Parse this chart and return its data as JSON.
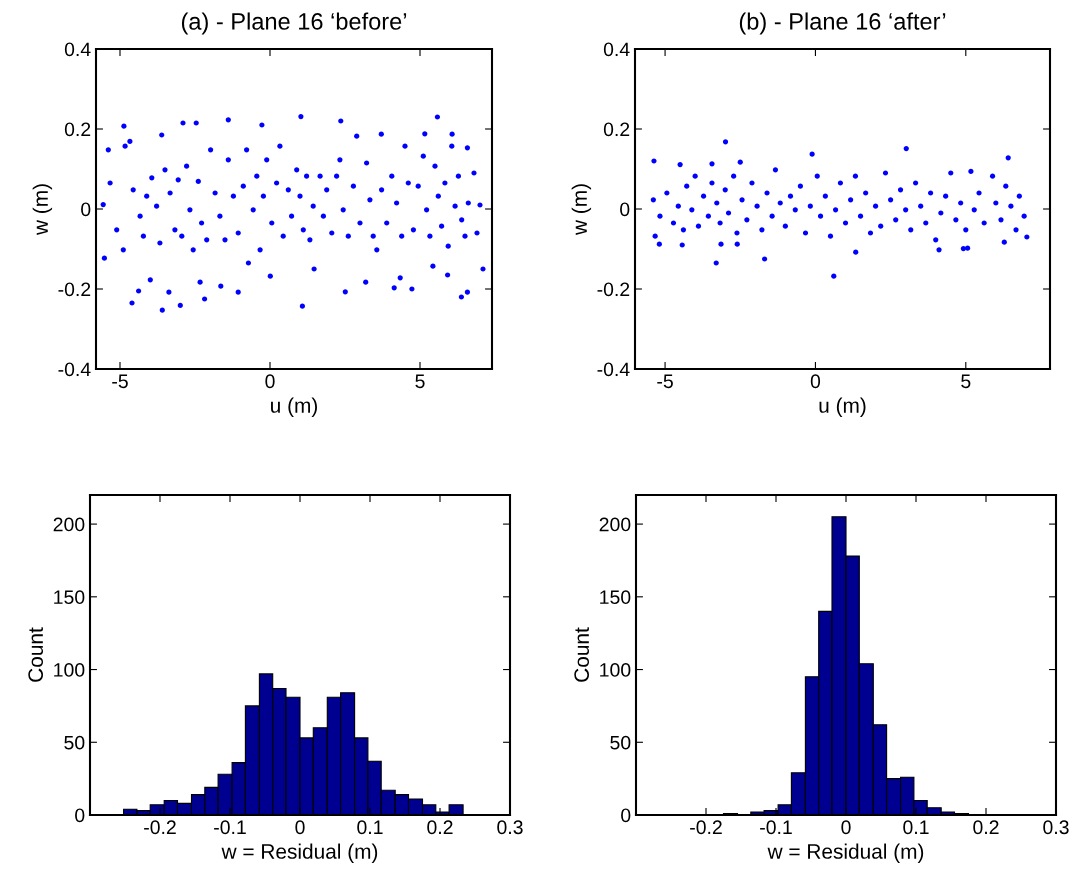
{
  "chart_data": [
    {
      "type": "scatter",
      "title": "(a) - Plane 16 ‘before’",
      "xlabel": "u (m)",
      "ylabel": "w (m)",
      "xlim": [
        -5.8,
        7.4
      ],
      "ylim": [
        -0.4,
        0.4
      ],
      "xticks": [
        -5,
        0,
        5
      ],
      "yticks": [
        -0.4,
        -0.2,
        0,
        0.2,
        0.4
      ],
      "marker": "circle",
      "grid": false,
      "legend": false,
      "series": [
        {
          "color": "#0000ff",
          "x": [
            -4.87,
            -3.61,
            -2.9,
            -2.46,
            -1.39,
            -0.27,
            1.03,
            2.36,
            3.71,
            5.16,
            5.58,
            6.07,
            6.58,
            -4.6,
            -3.59,
            -2.99,
            -4.38,
            -3.37,
            -2.18,
            -1.06,
            1.08,
            2.51,
            4.14,
            4.73,
            6.38,
            6.58,
            -5.52,
            -3.99,
            -2.33,
            -1.64,
            0.01,
            1.47,
            3.19,
            4.34,
            5.43,
            5.92,
            -5.56,
            -5.39,
            -5.33,
            -5.11,
            -4.89,
            -4.83,
            -4.67,
            -4.56,
            -4.33,
            -4.22,
            -4.11,
            -3.94,
            -3.78,
            -3.67,
            -3.5,
            -3.33,
            -3.17,
            -3.06,
            -2.94,
            -2.78,
            -2.67,
            -2.56,
            -2.39,
            -2.28,
            -2.11,
            -1.98,
            -1.83,
            -1.67,
            -1.5,
            -1.39,
            -1.22,
            -1.06,
            -0.89,
            -0.78,
            -0.72,
            -0.56,
            -0.44,
            -0.33,
            -0.22,
            -0.11,
            0.06,
            0.22,
            0.33,
            0.44,
            0.61,
            0.72,
            0.89,
            1.0,
            1.11,
            1.22,
            1.33,
            1.44,
            1.67,
            1.78,
            1.89,
            2.06,
            2.22,
            2.33,
            2.44,
            2.61,
            2.78,
            2.89,
            3.0,
            3.22,
            3.33,
            3.44,
            3.56,
            3.72,
            3.89,
            4.06,
            4.22,
            4.39,
            4.5,
            4.61,
            4.78,
            4.94,
            5.11,
            5.22,
            5.33,
            5.5,
            5.61,
            5.72,
            5.83,
            5.94,
            6.06,
            6.17,
            6.28,
            6.39,
            6.5,
            6.61,
            7.1,
            6.9,
            7.0,
            6.8
          ],
          "values": [
            0.207,
            0.185,
            0.215,
            0.215,
            0.223,
            0.21,
            0.231,
            0.22,
            0.187,
            0.188,
            0.23,
            0.187,
            0.153,
            -0.235,
            -0.253,
            -0.241,
            -0.205,
            -0.208,
            -0.225,
            -0.208,
            -0.243,
            -0.207,
            -0.197,
            -0.2,
            -0.22,
            -0.208,
            -0.123,
            -0.177,
            -0.183,
            -0.193,
            -0.168,
            -0.15,
            -0.183,
            -0.172,
            -0.143,
            -0.165,
            0.011,
            0.148,
            0.065,
            -0.052,
            -0.102,
            0.157,
            0.169,
            0.048,
            -0.018,
            -0.068,
            0.032,
            0.078,
            0.007,
            -0.085,
            0.098,
            0.04,
            -0.052,
            0.073,
            -0.068,
            0.107,
            -0.002,
            -0.102,
            0.069,
            -0.035,
            -0.077,
            0.148,
            0.04,
            -0.018,
            -0.077,
            0.123,
            0.032,
            -0.06,
            0.057,
            0.148,
            -0.135,
            -0.002,
            0.082,
            -0.102,
            0.032,
            0.123,
            -0.035,
            0.065,
            0.157,
            -0.068,
            0.048,
            -0.018,
            0.098,
            0.032,
            -0.052,
            0.082,
            -0.077,
            0.007,
            0.082,
            -0.018,
            0.048,
            -0.06,
            0.082,
            0.123,
            -0.002,
            -0.068,
            0.057,
            0.182,
            -0.035,
            0.115,
            0.023,
            -0.068,
            -0.102,
            0.048,
            -0.035,
            0.082,
            0.015,
            -0.068,
            0.157,
            0.065,
            -0.052,
            0.057,
            0.132,
            -0.002,
            -0.068,
            0.107,
            0.032,
            -0.043,
            0.065,
            -0.093,
            0.157,
            0.007,
            0.082,
            -0.027,
            -0.068,
            0.015,
            -0.15,
            -0.06,
            0.01,
            0.09
          ]
        }
      ]
    },
    {
      "type": "scatter",
      "title": "(b) - Plane 16 ‘after’",
      "xlabel": "u (m)",
      "ylabel": "w (m)",
      "xlim": [
        -6,
        7.8
      ],
      "ylim": [
        -0.4,
        0.4
      ],
      "xticks": [
        -5,
        0,
        5
      ],
      "yticks": [
        -0.4,
        -0.2,
        0,
        0.2,
        0.4
      ],
      "marker": "circle",
      "grid": false,
      "legend": false,
      "series": [
        {
          "color": "#0000ff",
          "x": [
            -5.37,
            -2.99,
            -0.11,
            3.02,
            6.41,
            -3.3,
            -1.69,
            0.61,
            1.34,
            4.11,
            4.92,
            5.06,
            -5.19,
            -4.43,
            -3.14,
            -2.6,
            6.28,
            7.03,
            -4.5,
            -3.44,
            -2.5,
            -5.39,
            -5.33,
            -5.17,
            -4.94,
            -4.72,
            -4.56,
            -4.39,
            -4.28,
            -4.11,
            -4.0,
            -3.89,
            -3.72,
            -3.56,
            -3.44,
            -3.28,
            -3.17,
            -3.0,
            -2.89,
            -2.72,
            -2.61,
            -2.44,
            -2.28,
            -2.11,
            -1.94,
            -1.78,
            -1.61,
            -1.44,
            -1.33,
            -1.17,
            -1.0,
            -0.83,
            -0.67,
            -0.5,
            -0.33,
            -0.17,
            0.06,
            0.17,
            0.33,
            0.5,
            0.67,
            0.83,
            1.0,
            1.17,
            1.33,
            1.5,
            1.67,
            1.83,
            2.0,
            2.17,
            2.33,
            2.5,
            2.67,
            2.83,
            3.0,
            3.17,
            3.33,
            3.5,
            3.67,
            3.83,
            4.0,
            4.17,
            4.33,
            4.5,
            4.67,
            4.83,
            5.0,
            5.17,
            5.28,
            5.44,
            5.61,
            5.89,
            6.0,
            6.17,
            6.33,
            6.5,
            6.67,
            6.78,
            6.94
          ],
          "values": [
            0.12,
            0.168,
            0.137,
            0.151,
            0.128,
            -0.135,
            -0.125,
            -0.168,
            -0.108,
            -0.102,
            -0.099,
            -0.098,
            -0.088,
            -0.09,
            -0.088,
            -0.088,
            -0.083,
            -0.07,
            0.111,
            0.113,
            0.117,
            0.023,
            -0.068,
            -0.018,
            0.04,
            -0.035,
            0.007,
            -0.052,
            0.057,
            -0.002,
            0.082,
            -0.043,
            0.032,
            -0.018,
            0.065,
            0.015,
            -0.035,
            0.048,
            -0.01,
            0.082,
            -0.06,
            0.023,
            -0.027,
            0.065,
            0.007,
            -0.052,
            0.04,
            -0.018,
            0.098,
            0.015,
            -0.043,
            0.032,
            -0.002,
            0.057,
            -0.06,
            0.007,
            0.082,
            -0.018,
            0.032,
            -0.068,
            -0.002,
            0.065,
            -0.035,
            0.023,
            0.082,
            -0.018,
            0.04,
            -0.06,
            0.007,
            -0.043,
            0.09,
            0.023,
            -0.027,
            0.048,
            -0.002,
            -0.052,
            0.065,
            0.007,
            -0.035,
            0.04,
            -0.077,
            -0.01,
            0.032,
            0.09,
            -0.027,
            0.015,
            -0.052,
            0.094,
            -0.002,
            0.04,
            -0.035,
            0.082,
            0.015,
            -0.027,
            0.057,
            0.007,
            -0.052,
            0.032,
            -0.018
          ]
        }
      ]
    },
    {
      "type": "histogram",
      "xlabel": "w = Residual (m)",
      "ylabel": "Count",
      "xlim": [
        -0.3,
        0.3
      ],
      "ylim": [
        0,
        220
      ],
      "xticks": [
        -0.2,
        -0.1,
        0,
        0.1,
        0.2,
        0.3
      ],
      "yticks": [
        0,
        50,
        100,
        150,
        200
      ],
      "color": "#000090",
      "grid": false,
      "bins": [
        -0.252,
        -0.233,
        -0.214,
        -0.194,
        -0.175,
        -0.155,
        -0.136,
        -0.117,
        -0.097,
        -0.078,
        -0.058,
        -0.039,
        -0.02,
        0.0,
        0.019,
        0.039,
        0.058,
        0.078,
        0.097,
        0.116,
        0.136,
        0.155,
        0.175,
        0.194,
        0.213,
        0.233
      ],
      "values": [
        4,
        3,
        7,
        10,
        8,
        14,
        19,
        28,
        36,
        75,
        97,
        87,
        81,
        53,
        60,
        81,
        84,
        53,
        37,
        17,
        14,
        11,
        7,
        2,
        7
      ]
    },
    {
      "type": "histogram",
      "xlabel": "w = Residual (m)",
      "ylabel": "Count",
      "xlim": [
        -0.3,
        0.3
      ],
      "ylim": [
        0,
        220
      ],
      "xticks": [
        -0.2,
        -0.1,
        0,
        0.1,
        0.2,
        0.3
      ],
      "yticks": [
        0,
        50,
        100,
        150,
        200
      ],
      "color": "#000090",
      "grid": false,
      "bins": [
        -0.175,
        -0.155,
        -0.136,
        -0.117,
        -0.097,
        -0.078,
        -0.058,
        -0.039,
        -0.02,
        0.0,
        0.019,
        0.039,
        0.058,
        0.078,
        0.097,
        0.116,
        0.136,
        0.155,
        0.175
      ],
      "values": [
        1,
        null,
        2,
        3,
        7,
        29,
        95,
        140,
        205,
        178,
        104,
        62,
        25,
        26,
        10,
        5,
        2,
        1
      ]
    }
  ]
}
